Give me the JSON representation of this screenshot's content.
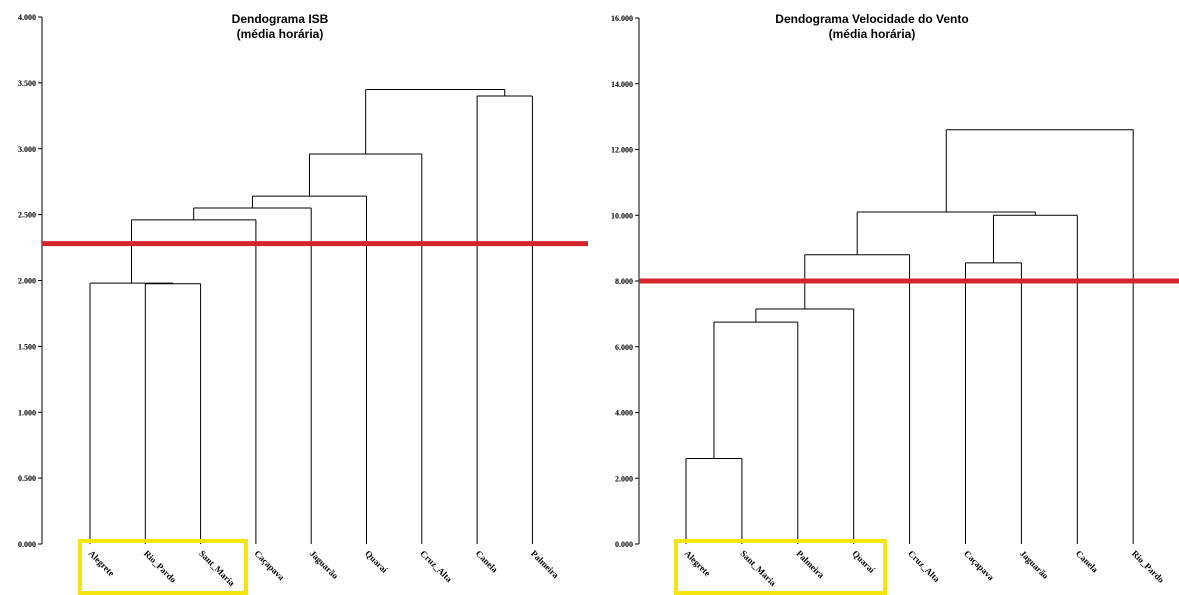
{
  "chart_data": [
    {
      "type": "dendrogram",
      "title": "Dendograma ISB",
      "subtitle": "(média horária)",
      "ylim": [
        0,
        4.0
      ],
      "yticks": [
        {
          "value": 0,
          "label": "0.000"
        },
        {
          "value": 0.5,
          "label": "0.500"
        },
        {
          "value": 1.0,
          "label": "1.000"
        },
        {
          "value": 1.5,
          "label": "1.500"
        },
        {
          "value": 2.0,
          "label": "2.000"
        },
        {
          "value": 2.5,
          "label": "2.500"
        },
        {
          "value": 3.0,
          "label": "3.000"
        },
        {
          "value": 3.5,
          "label": "3.500"
        },
        {
          "value": 4.0,
          "label": "4.000"
        }
      ],
      "leaves": [
        "Alegrete",
        "Rio_Pardo",
        "Sant_Maria",
        "Caçapava",
        "Jaguarão",
        "Quaraí",
        "Cruz_Alta",
        "Canela",
        "Palmeira"
      ],
      "merges": [
        {
          "id": "A",
          "left": "Rio_Pardo",
          "right": "Sant_Maria",
          "height": 1.975
        },
        {
          "id": "B",
          "left": "Alegrete",
          "right": "A",
          "height": 1.98
        },
        {
          "id": "C",
          "left": "B",
          "right": "Caçapava",
          "height": 2.46
        },
        {
          "id": "D",
          "left": "C",
          "right": "Jaguarão",
          "height": 2.55
        },
        {
          "id": "E",
          "left": "D",
          "right": "Quaraí",
          "height": 2.64
        },
        {
          "id": "F",
          "left": "E",
          "right": "Cruz_Alta",
          "height": 2.96
        },
        {
          "id": "G",
          "left": "Canela",
          "right": "Palmeira",
          "height": 3.4
        },
        {
          "id": "H",
          "left": "F",
          "right": "G",
          "height": 3.45
        }
      ],
      "cut_height": 2.28,
      "highlighted_leaves": [
        "Alegrete",
        "Rio_Pardo",
        "Sant_Maria"
      ],
      "cut_line_color": "#d3262c",
      "highlight_color": "#f5e50f"
    },
    {
      "type": "dendrogram",
      "title": "Dendograma Velocidade do Vento",
      "subtitle": "(média horária)",
      "ylim": [
        0,
        16.0
      ],
      "yticks": [
        {
          "value": 0,
          "label": "0.000"
        },
        {
          "value": 2,
          "label": "2.000"
        },
        {
          "value": 4,
          "label": "4.000"
        },
        {
          "value": 6,
          "label": "6.000"
        },
        {
          "value": 8,
          "label": "8.000"
        },
        {
          "value": 10,
          "label": "10.000"
        },
        {
          "value": 12,
          "label": "12.000"
        },
        {
          "value": 14,
          "label": "14.000"
        },
        {
          "value": 16,
          "label": "16.000"
        }
      ],
      "leaves": [
        "Alegrete",
        "Sant_Maria",
        "Palmeira",
        "Quaraí",
        "Cruz_Alta",
        "Caçapava",
        "Jaguarão",
        "Canela",
        "Rio_Pardo"
      ],
      "merges": [
        {
          "id": "A",
          "left": "Alegrete",
          "right": "Sant_Maria",
          "height": 2.6
        },
        {
          "id": "B",
          "left": "A",
          "right": "Palmeira",
          "height": 6.75
        },
        {
          "id": "C",
          "left": "B",
          "right": "Quaraí",
          "height": 7.15
        },
        {
          "id": "D",
          "left": "C",
          "right": "Cruz_Alta",
          "height": 8.8
        },
        {
          "id": "E",
          "left": "Caçapava",
          "right": "Jaguarão",
          "height": 8.55
        },
        {
          "id": "F",
          "left": "E",
          "right": "Canela",
          "height": 10.0
        },
        {
          "id": "G",
          "left": "D",
          "right": "F",
          "height": 10.1
        },
        {
          "id": "H",
          "left": "G",
          "right": "Rio_Pardo",
          "height": 12.6
        }
      ],
      "cut_height": 8.0,
      "highlighted_leaves": [
        "Alegrete",
        "Sant_Maria",
        "Palmeira",
        "Quaraí"
      ],
      "cut_line_color": "#d3262c",
      "highlight_color": "#f5e50f"
    }
  ]
}
